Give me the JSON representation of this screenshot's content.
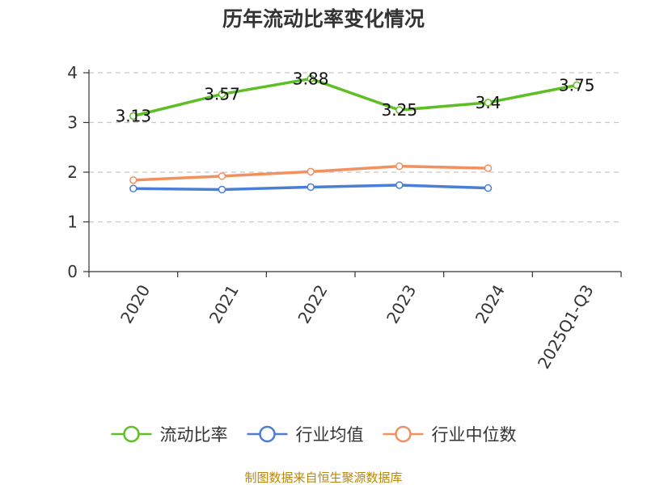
{
  "chart_data": {
    "type": "line",
    "title": "历年流动比率变化情况",
    "categories": [
      "2020",
      "2021",
      "2022",
      "2023",
      "2024",
      "2025Q1-Q3"
    ],
    "series": [
      {
        "name": "流动比率",
        "color": "#5dbf24",
        "values": [
          3.13,
          3.57,
          3.88,
          3.25,
          3.4,
          3.75
        ],
        "show_labels": true
      },
      {
        "name": "行业均值",
        "color": "#4a7fd4",
        "values": [
          1.67,
          1.65,
          1.7,
          1.74,
          1.68,
          null
        ],
        "show_labels": false
      },
      {
        "name": "行业中位数",
        "color": "#f29160",
        "values": [
          1.84,
          1.92,
          2.01,
          2.12,
          2.08,
          null
        ],
        "show_labels": false
      }
    ],
    "ylim": [
      0,
      4
    ],
    "yticks": [
      0,
      1,
      2,
      3,
      4
    ],
    "grid": true,
    "legend_position": "bottom"
  },
  "source_text": "制图数据来自恒生聚源数据库"
}
